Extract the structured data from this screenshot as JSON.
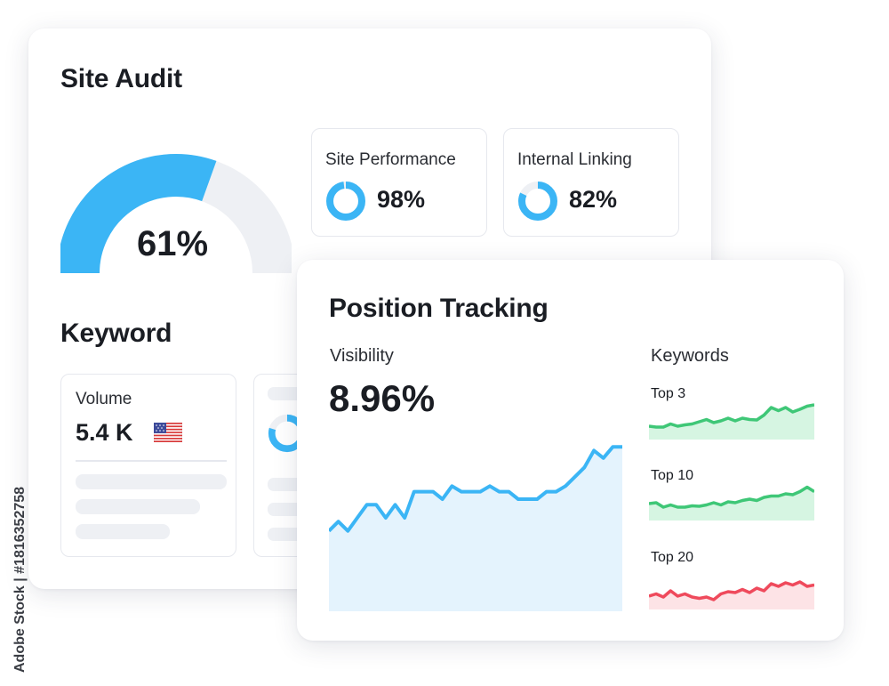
{
  "site_audit": {
    "title": "Site Audit",
    "score": "61%",
    "score_value": 0.61,
    "metrics": [
      {
        "label": "Site Performance",
        "value": "98%",
        "fraction": 0.98
      },
      {
        "label": "Internal Linking",
        "value": "82%",
        "fraction": 0.82
      }
    ]
  },
  "keyword": {
    "title": "Keyword",
    "volume_label": "Volume",
    "volume_value": "5.4 K",
    "flag_icon": "us-flag-icon"
  },
  "position_tracking": {
    "title": "Position Tracking",
    "visibility_label": "Visibility",
    "visibility_value": "8.96%",
    "visibility_series": [
      0.43,
      0.48,
      0.43,
      0.5,
      0.57,
      0.57,
      0.5,
      0.57,
      0.5,
      0.64,
      0.64,
      0.64,
      0.6,
      0.67,
      0.64,
      0.64,
      0.64,
      0.67,
      0.64,
      0.64,
      0.6,
      0.6,
      0.6,
      0.64,
      0.64,
      0.67,
      0.72,
      0.77,
      0.86,
      0.82,
      0.88,
      0.88
    ],
    "keywords_label": "Keywords",
    "keyword_groups": [
      {
        "label": "Top 3",
        "color": "#3fc777",
        "fill": "#d6f5e2",
        "series": [
          0.3,
          0.28,
          0.28,
          0.35,
          0.3,
          0.33,
          0.35,
          0.4,
          0.45,
          0.38,
          0.42,
          0.48,
          0.42,
          0.48,
          0.45,
          0.44,
          0.55,
          0.72,
          0.65,
          0.72,
          0.62,
          0.68,
          0.75,
          0.78
        ]
      },
      {
        "label": "Top 10",
        "color": "#3fc777",
        "fill": "#d6f5e2",
        "series": [
          0.38,
          0.4,
          0.3,
          0.35,
          0.3,
          0.3,
          0.33,
          0.32,
          0.35,
          0.4,
          0.35,
          0.42,
          0.4,
          0.45,
          0.48,
          0.45,
          0.52,
          0.55,
          0.55,
          0.6,
          0.58,
          0.65,
          0.75,
          0.65
        ]
      },
      {
        "label": "Top 20",
        "color": "#ef4a5c",
        "fill": "#fde3e6",
        "series": [
          0.3,
          0.35,
          0.28,
          0.42,
          0.3,
          0.35,
          0.28,
          0.25,
          0.28,
          0.22,
          0.35,
          0.4,
          0.38,
          0.45,
          0.38,
          0.48,
          0.42,
          0.58,
          0.52,
          0.6,
          0.55,
          0.62,
          0.52,
          0.55
        ]
      }
    ]
  },
  "colors": {
    "accent_blue": "#3bb5f5",
    "track_gray": "#eef0f4",
    "vis_fill": "#e4f3fd"
  },
  "watermark": "Adobe Stock | #1816352758"
}
